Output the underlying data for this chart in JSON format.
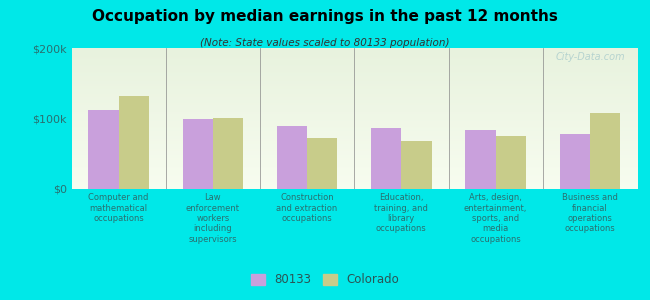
{
  "title": "Occupation by median earnings in the past 12 months",
  "subtitle": "(Note: State values scaled to 80133 population)",
  "categories": [
    "Computer and\nmathematical\noccupations",
    "Law\nenforcement\nworkers\nincluding\nsupervisors",
    "Construction\nand extraction\noccupations",
    "Education,\ntraining, and\nlibrary\noccupations",
    "Arts, design,\nentertainment,\nsports, and\nmedia\noccupations",
    "Business and\nfinancial\noperations\noccupations"
  ],
  "values_80133": [
    112000,
    100000,
    90000,
    86000,
    83000,
    78000
  ],
  "values_colorado": [
    132000,
    101000,
    72000,
    68000,
    75000,
    108000
  ],
  "color_80133": "#c9a0dc",
  "color_colorado": "#c8cc8a",
  "background_outer": "#00e8e8",
  "background_inner_top": "#e8f0e0",
  "background_inner_bottom": "#f5faee",
  "ylim": [
    0,
    200000
  ],
  "yticks": [
    0,
    100000,
    200000
  ],
  "ytick_labels": [
    "$0",
    "$100k",
    "$200k"
  ],
  "legend_label_80133": "80133",
  "legend_label_colorado": "Colorado",
  "watermark": "City-Data.com"
}
